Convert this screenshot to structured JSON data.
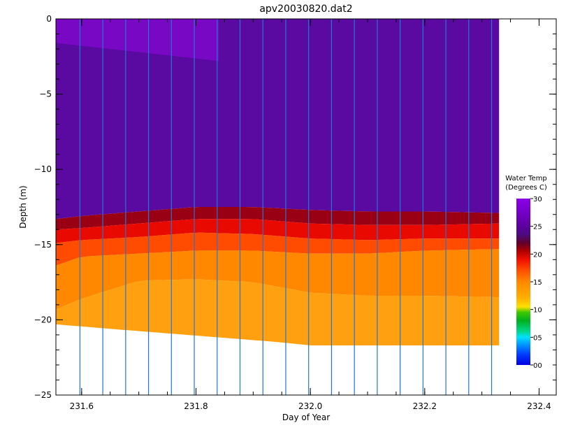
{
  "chart_data": {
    "type": "heatmap",
    "title": "apv20030820.dat2",
    "xlabel": "Day of Year",
    "ylabel": "Depth (m)",
    "xlim": [
      231.555,
      232.43
    ],
    "ylim": [
      -25,
      0
    ],
    "x_ticks": [
      {
        "value": 231.6,
        "label": "231.6"
      },
      {
        "value": 231.8,
        "label": "231.8"
      },
      {
        "value": 232.0,
        "label": "232.0"
      },
      {
        "value": 232.2,
        "label": "232.2"
      },
      {
        "value": 232.4,
        "label": "232.4"
      }
    ],
    "y_ticks": [
      {
        "value": 0,
        "label": "0"
      },
      {
        "value": -5,
        "label": "−5"
      },
      {
        "value": -10,
        "label": "−10"
      },
      {
        "value": -15,
        "label": "−15"
      },
      {
        "value": -20,
        "label": "−20"
      },
      {
        "value": -25,
        "label": "−25"
      }
    ],
    "profile_times": [
      231.597,
      231.637,
      231.677,
      231.717,
      231.757,
      231.797,
      231.837,
      231.877,
      231.917,
      231.957,
      231.997,
      232.037,
      232.077,
      232.117,
      232.157,
      232.197,
      232.237,
      232.277,
      232.317
    ],
    "data_x_range": [
      231.555,
      232.33
    ],
    "bottom_depth": {
      "x": [
        231.555,
        231.65,
        231.75,
        231.85,
        231.95,
        232.0,
        232.1,
        232.2,
        232.33
      ],
      "depth": [
        -20.3,
        -20.6,
        -20.9,
        -21.2,
        -21.5,
        -21.7,
        -21.7,
        -21.7,
        -21.7
      ]
    },
    "thermocline": {
      "x": [
        231.555,
        231.6,
        231.7,
        231.8,
        231.9,
        232.0,
        232.1,
        232.2,
        232.33
      ],
      "top_depth": [
        -13.3,
        -13.1,
        -12.8,
        -12.5,
        -12.5,
        -12.7,
        -12.8,
        -12.8,
        -12.9
      ],
      "warm_edge_depth": [
        -14.0,
        -13.9,
        -13.6,
        -13.3,
        -13.3,
        -13.6,
        -13.7,
        -13.7,
        -13.6
      ],
      "red_bottom_depth": [
        -14.9,
        -14.7,
        -14.5,
        -14.2,
        -14.3,
        -14.6,
        -14.7,
        -14.6,
        -14.6
      ],
      "orange_top_depth": [
        -16.4,
        -15.8,
        -15.6,
        -15.4,
        -15.4,
        -15.6,
        -15.6,
        -15.4,
        -15.3
      ],
      "orange_mid_depth": [
        -19.3,
        -18.6,
        -17.4,
        -17.3,
        -17.5,
        -18.2,
        -18.4,
        -18.4,
        -18.5
      ]
    },
    "surface_warm_patch": {
      "x": [
        231.555,
        231.84
      ],
      "bottom_depth": [
        -1.6,
        -2.8
      ]
    },
    "colorbar": {
      "title_line1": "Water Temp",
      "title_line2": "(Degrees C)",
      "range": [
        0,
        30
      ],
      "labels": [
        {
          "value": 30,
          "label": "30"
        },
        {
          "value": 25,
          "label": "25"
        },
        {
          "value": 20,
          "label": "20"
        },
        {
          "value": 15,
          "label": "15"
        },
        {
          "value": 10,
          "label": "10"
        },
        {
          "value": 5,
          "label": "05"
        },
        {
          "value": 0,
          "label": "00"
        }
      ],
      "stops": [
        {
          "value": 0,
          "color": "#0000e0"
        },
        {
          "value": 2,
          "color": "#0040ff"
        },
        {
          "value": 4,
          "color": "#00a8ff"
        },
        {
          "value": 5,
          "color": "#00e0ff"
        },
        {
          "value": 6,
          "color": "#00d890"
        },
        {
          "value": 8,
          "color": "#00b020"
        },
        {
          "value": 9.5,
          "color": "#40c800"
        },
        {
          "value": 10.5,
          "color": "#ffe000"
        },
        {
          "value": 12,
          "color": "#ffb000"
        },
        {
          "value": 15,
          "color": "#ff8800"
        },
        {
          "value": 17,
          "color": "#ff5000"
        },
        {
          "value": 19,
          "color": "#f01000"
        },
        {
          "value": 20.5,
          "color": "#b00000"
        },
        {
          "value": 22,
          "color": "#600028"
        },
        {
          "value": 23.5,
          "color": "#4a0c80"
        },
        {
          "value": 25,
          "color": "#5c00a0"
        },
        {
          "value": 27,
          "color": "#7000c0"
        },
        {
          "value": 30,
          "color": "#8a00e8"
        }
      ]
    },
    "colors": {
      "deep_purple": "#5a0aa0",
      "surface_purple": "#7808c4",
      "dark_red": "#9a0014",
      "red": "#e80a00",
      "orange_red": "#ff4c00",
      "orange": "#ff8800",
      "light_orange": "#ffa010",
      "profile_line": "#1f77d8",
      "background": "#ffffff"
    }
  }
}
